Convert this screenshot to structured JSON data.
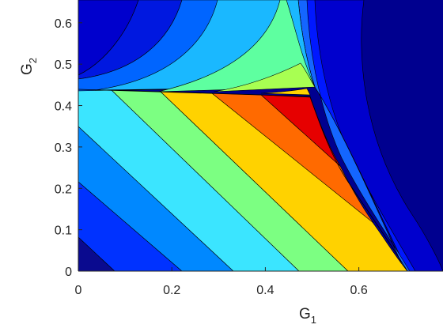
{
  "chart_data": {
    "type": "contour",
    "title": "",
    "xlabel": "G",
    "xlabel_sub": "1",
    "ylabel": "G",
    "ylabel_sub": "2",
    "xlim": [
      0,
      0.78
    ],
    "ylim": [
      0,
      0.655
    ],
    "xticks": [
      0,
      0.2,
      0.4,
      0.6
    ],
    "xtick_labels": [
      "0",
      "0.2",
      "0.4",
      "0.6"
    ],
    "yticks": [
      0,
      0.1,
      0.2,
      0.3,
      0.4,
      0.5,
      0.6
    ],
    "ytick_labels": [
      "0",
      "0.1",
      "0.2",
      "0.3",
      "0.4",
      "0.5",
      "0.6"
    ],
    "grid": false,
    "colormap": "jet",
    "boundary": {
      "description": "triangle-like region bounded above by line G2 ~= 0.432 -> 0.41 and on the right by a concave curve meeting G1 ~= 0.70 at G2 = 0",
      "top_left": [
        0.0,
        0.432
      ],
      "top_right": [
        0.47,
        0.412
      ],
      "cusp": [
        0.565,
        0.23
      ],
      "bottom_right": [
        0.7,
        0.0
      ],
      "upper_wedge_tip": [
        0.355,
        0.655
      ]
    },
    "lower_region_band_edges_at_G2_0": [
      0.065,
      0.215,
      0.355,
      0.505,
      0.635,
      0.7
    ],
    "lower_region_band_edges_at_top": [
      0.0,
      0.065,
      0.17,
      0.29,
      0.42
    ],
    "lower_region_colors": [
      "#0a0a8f",
      "#0032ff",
      "#0088ff",
      "#3be5ff",
      "#7cff82",
      "#cdff2c",
      "#ffd200",
      "#ff6a00",
      "#e60000"
    ],
    "upper_region_colors": [
      "#0018e0",
      "#0065ff",
      "#1ab8ff",
      "#5effa0",
      "#a8ff52",
      "#ffd200"
    ],
    "outer_colors": {
      "far": "#00008f",
      "mid": "#0000cd",
      "near": "#0018ff",
      "edge": "#1466ff"
    }
  }
}
